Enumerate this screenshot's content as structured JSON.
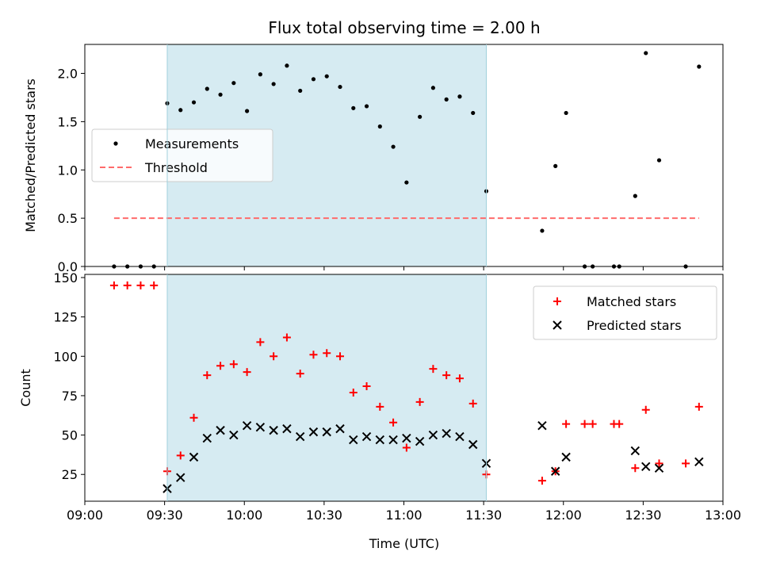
{
  "title": "Flux total observing time = 2.00 h",
  "xlabel": "Time (UTC)",
  "colors": {
    "shade": "#add8e6",
    "threshold": "#ff6b6b",
    "matched": "#ff0000",
    "predicted": "#000000",
    "measurement": "#000000"
  },
  "chart_data": [
    {
      "type": "scatter",
      "panel": "top",
      "ylabel": "Matched/Predicted stars",
      "xlim": [
        "09:00",
        "13:00"
      ],
      "ylim": [
        0,
        2.3
      ],
      "yticks": [
        "0.0",
        "0.5",
        "1.0",
        "1.5",
        "2.0"
      ],
      "yticks_values": [
        0,
        0.5,
        1.0,
        1.5,
        2.0
      ],
      "shaded_interval": [
        "09:31",
        "11:31"
      ],
      "legend_position": "center-left",
      "series": [
        {
          "name": "Measurements",
          "kind": "points",
          "x": [
            "09:11",
            "09:16",
            "09:21",
            "09:26",
            "09:31",
            "09:36",
            "09:41",
            "09:46",
            "09:51",
            "09:56",
            "10:01",
            "10:06",
            "10:11",
            "10:16",
            "10:21",
            "10:26",
            "10:31",
            "10:36",
            "10:41",
            "10:46",
            "10:51",
            "10:56",
            "11:01",
            "11:06",
            "11:11",
            "11:16",
            "11:21",
            "11:26",
            "11:31",
            "11:52",
            "11:57",
            "12:01",
            "12:08",
            "12:11",
            "12:19",
            "12:21",
            "12:27",
            "12:31",
            "12:36",
            "12:46",
            "12:51"
          ],
          "y": [
            0,
            0,
            0,
            0,
            1.69,
            1.62,
            1.7,
            1.84,
            1.78,
            1.9,
            1.61,
            1.99,
            1.89,
            2.08,
            1.82,
            1.94,
            1.97,
            1.86,
            1.64,
            1.66,
            1.45,
            1.24,
            0.87,
            1.55,
            1.85,
            1.73,
            1.76,
            1.59,
            0.78,
            0.37,
            1.04,
            1.59,
            0,
            0,
            0,
            0,
            0.73,
            2.21,
            1.1,
            0,
            2.07
          ]
        },
        {
          "name": "Threshold",
          "kind": "line",
          "x": [
            "09:11",
            "12:51"
          ],
          "y": [
            0.5,
            0.5
          ]
        }
      ]
    },
    {
      "type": "scatter",
      "panel": "bottom",
      "ylabel": "Count",
      "xlim": [
        "09:00",
        "13:00"
      ],
      "ylim": [
        8,
        152
      ],
      "yticks": [
        "25",
        "50",
        "75",
        "100",
        "125",
        "150"
      ],
      "yticks_values": [
        25,
        50,
        75,
        100,
        125,
        150
      ],
      "xticks": [
        "09:00",
        "09:30",
        "10:00",
        "10:30",
        "11:00",
        "11:30",
        "12:00",
        "12:30",
        "13:00"
      ],
      "shaded_interval": [
        "09:31",
        "11:31"
      ],
      "legend_position": "top-right",
      "series": [
        {
          "name": "Matched stars",
          "marker": "plus",
          "x": [
            "09:11",
            "09:16",
            "09:21",
            "09:26",
            "09:31",
            "09:36",
            "09:41",
            "09:46",
            "09:51",
            "09:56",
            "10:01",
            "10:06",
            "10:11",
            "10:16",
            "10:21",
            "10:26",
            "10:31",
            "10:36",
            "10:41",
            "10:46",
            "10:51",
            "10:56",
            "11:01",
            "11:06",
            "11:11",
            "11:16",
            "11:21",
            "11:26",
            "11:31",
            "11:52",
            "11:57",
            "12:01",
            "12:08",
            "12:11",
            "12:19",
            "12:21",
            "12:27",
            "12:31",
            "12:36",
            "12:46",
            "12:51"
          ],
          "y": [
            145,
            145,
            145,
            145,
            27,
            37,
            61,
            88,
            94,
            95,
            90,
            109,
            100,
            112,
            89,
            101,
            102,
            100,
            77,
            81,
            68,
            58,
            42,
            71,
            92,
            88,
            86,
            70,
            25,
            21,
            27,
            57,
            57,
            57,
            57,
            57,
            29,
            66,
            32,
            32,
            68
          ]
        },
        {
          "name": "Predicted stars",
          "marker": "x",
          "x": [
            "09:31",
            "09:36",
            "09:41",
            "09:46",
            "09:51",
            "09:56",
            "10:01",
            "10:06",
            "10:11",
            "10:16",
            "10:21",
            "10:26",
            "10:31",
            "10:36",
            "10:41",
            "10:46",
            "10:51",
            "10:56",
            "11:01",
            "11:06",
            "11:11",
            "11:16",
            "11:21",
            "11:26",
            "11:31",
            "11:52",
            "11:57",
            "12:01",
            "12:27",
            "12:31",
            "12:36",
            "12:51"
          ],
          "y": [
            16,
            23,
            36,
            48,
            53,
            50,
            56,
            55,
            53,
            54,
            49,
            52,
            52,
            54,
            47,
            49,
            47,
            47,
            48,
            46,
            50,
            51,
            49,
            44,
            32,
            56,
            27,
            36,
            40,
            30,
            29,
            33
          ]
        }
      ]
    }
  ]
}
